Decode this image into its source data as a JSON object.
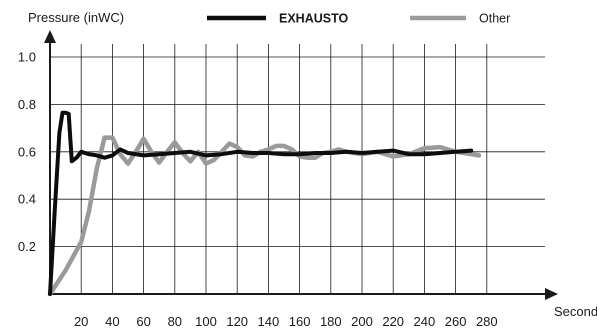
{
  "chart_data": {
    "type": "line",
    "title": "",
    "ylabel": "Pressure (inWC)",
    "xlabel": "Seconds",
    "xlim": [
      0,
      280
    ],
    "ylim": [
      0,
      1.0
    ],
    "x_ticks": [
      20,
      40,
      60,
      80,
      100,
      120,
      140,
      160,
      180,
      200,
      220,
      240,
      260,
      280
    ],
    "y_ticks": [
      0.2,
      0.4,
      0.6,
      0.8,
      1.0
    ],
    "x_tick_labels": [
      "20",
      "40",
      "60",
      "80",
      "100",
      "120",
      "140",
      "160",
      "180",
      "200",
      "220",
      "240",
      "260",
      "280"
    ],
    "y_tick_labels": [
      "0.2",
      "0.4",
      "0.6",
      "0.8",
      "1.0"
    ],
    "grid": true,
    "legend": {
      "placement": "top"
    },
    "series": [
      {
        "name": "EXHAUSTO",
        "color": "#0d0d0d",
        "x": [
          0,
          3,
          6,
          8,
          10,
          12,
          14,
          17,
          20,
          25,
          30,
          35,
          40,
          45,
          50,
          60,
          70,
          80,
          90,
          100,
          110,
          120,
          130,
          140,
          150,
          160,
          170,
          180,
          190,
          200,
          210,
          220,
          230,
          240,
          250,
          260,
          270
        ],
        "y": [
          0.0,
          0.35,
          0.68,
          0.765,
          0.765,
          0.76,
          0.56,
          0.575,
          0.6,
          0.59,
          0.585,
          0.575,
          0.585,
          0.61,
          0.595,
          0.585,
          0.59,
          0.595,
          0.6,
          0.585,
          0.59,
          0.6,
          0.595,
          0.595,
          0.59,
          0.59,
          0.595,
          0.595,
          0.6,
          0.595,
          0.6,
          0.605,
          0.59,
          0.59,
          0.595,
          0.6,
          0.605
        ]
      },
      {
        "name": "Other",
        "color": "#9a9a9a",
        "x": [
          0,
          10,
          20,
          25,
          30,
          35,
          40,
          45,
          50,
          55,
          60,
          65,
          70,
          75,
          80,
          85,
          90,
          95,
          100,
          105,
          110,
          115,
          120,
          125,
          130,
          135,
          140,
          145,
          150,
          155,
          160,
          165,
          170,
          175,
          180,
          185,
          190,
          200,
          210,
          220,
          230,
          240,
          250,
          260,
          270,
          275
        ],
        "y": [
          0.0,
          0.1,
          0.22,
          0.35,
          0.53,
          0.66,
          0.66,
          0.59,
          0.55,
          0.6,
          0.655,
          0.6,
          0.555,
          0.6,
          0.64,
          0.595,
          0.56,
          0.6,
          0.55,
          0.565,
          0.6,
          0.635,
          0.62,
          0.585,
          0.58,
          0.6,
          0.61,
          0.625,
          0.625,
          0.61,
          0.58,
          0.575,
          0.575,
          0.595,
          0.6,
          0.61,
          0.6,
          0.59,
          0.6,
          0.58,
          0.59,
          0.615,
          0.62,
          0.6,
          0.59,
          0.585
        ]
      }
    ]
  }
}
